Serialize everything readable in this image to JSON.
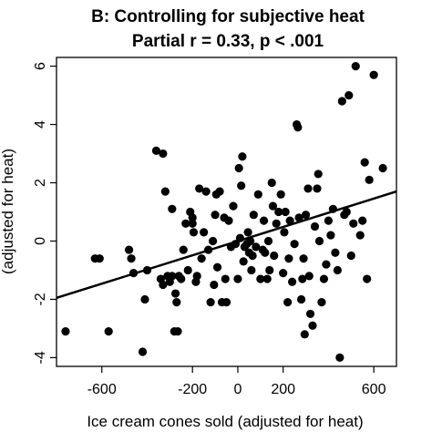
{
  "chart_data": {
    "type": "scatter",
    "title": "B: Controlling for subjective heat",
    "subtitle": "Partial r = 0.33, p < .001",
    "xlabel": "Ice cream cones sold (adjusted for heat)",
    "ylabel": "(adjusted for heat)",
    "xlim": [
      -800,
      700
    ],
    "ylim": [
      -4.3,
      6.3
    ],
    "xticks": [
      -600,
      -200,
      0,
      200,
      600
    ],
    "yticks": [
      -4,
      -2,
      0,
      2,
      4,
      6
    ],
    "grid": false,
    "fit_line": {
      "x": [
        -800,
        700
      ],
      "y": [
        -1.95,
        1.7
      ]
    },
    "colors": {
      "points": "#000000",
      "line": "#000000"
    },
    "points": [
      [
        -760,
        -3.1
      ],
      [
        -610,
        -0.6
      ],
      [
        -570,
        -3.1
      ],
      [
        -480,
        -0.3
      ],
      [
        -470,
        -0.6
      ],
      [
        -460,
        -1.1
      ],
      [
        -420,
        -3.8
      ],
      [
        -410,
        -2.0
      ],
      [
        -400,
        -1.0
      ],
      [
        -360,
        3.1
      ],
      [
        -340,
        -1.3
      ],
      [
        -330,
        -1.5
      ],
      [
        -320,
        1.7
      ],
      [
        -310,
        -1.2
      ],
      [
        -300,
        -1.4
      ],
      [
        -290,
        -1.2
      ],
      [
        -280,
        -3.1
      ],
      [
        -275,
        -1.8
      ],
      [
        -270,
        -2.1
      ],
      [
        -265,
        -3.1
      ],
      [
        -260,
        -1.2
      ],
      [
        -250,
        -1.3
      ],
      [
        -240,
        -0.3
      ],
      [
        -230,
        0.6
      ],
      [
        -220,
        -1.0
      ],
      [
        -210,
        1.0
      ],
      [
        -200,
        0.8
      ],
      [
        -200,
        0.6
      ],
      [
        -195,
        0.3
      ],
      [
        -185,
        -1.4
      ],
      [
        -180,
        -1.2
      ],
      [
        -170,
        1.8
      ],
      [
        -160,
        -0.6
      ],
      [
        -150,
        0.3
      ],
      [
        -140,
        1.7
      ],
      [
        -130,
        -0.3
      ],
      [
        -120,
        -2.1
      ],
      [
        -110,
        0.0
      ],
      [
        -105,
        -1.5
      ],
      [
        -100,
        0.9
      ],
      [
        -95,
        1.6
      ],
      [
        -90,
        -0.9
      ],
      [
        -80,
        1.7
      ],
      [
        -70,
        -2.1
      ],
      [
        -60,
        0.8
      ],
      [
        -55,
        -1.3
      ],
      [
        -50,
        -2.1
      ],
      [
        -40,
        0.7
      ],
      [
        -30,
        -0.2
      ],
      [
        -20,
        1.2
      ],
      [
        -10,
        -0.1
      ],
      [
        0,
        -1.3
      ],
      [
        5,
        2.5
      ],
      [
        10,
        0.1
      ],
      [
        15,
        1.9
      ],
      [
        20,
        2.9
      ],
      [
        25,
        -0.7
      ],
      [
        30,
        -0.2
      ],
      [
        40,
        -0.1
      ],
      [
        45,
        0.3
      ],
      [
        50,
        -0.4
      ],
      [
        55,
        0.0
      ],
      [
        60,
        -1.0
      ],
      [
        65,
        -0.5
      ],
      [
        70,
        0.9
      ],
      [
        80,
        -0.2
      ],
      [
        90,
        1.6
      ],
      [
        100,
        -1.3
      ],
      [
        110,
        -0.3
      ],
      [
        115,
        0.7
      ],
      [
        120,
        -0.4
      ],
      [
        130,
        -1.3
      ],
      [
        135,
        0.0
      ],
      [
        140,
        -1.0
      ],
      [
        150,
        2.0
      ],
      [
        155,
        1.2
      ],
      [
        160,
        -0.5
      ],
      [
        170,
        0.6
      ],
      [
        180,
        1.0
      ],
      [
        190,
        1.6
      ],
      [
        200,
        -1.1
      ],
      [
        205,
        0.3
      ],
      [
        210,
        1.0
      ],
      [
        220,
        -2.1
      ],
      [
        225,
        -0.6
      ],
      [
        230,
        0.7
      ],
      [
        240,
        -1.4
      ],
      [
        250,
        -0.1
      ],
      [
        260,
        4.0
      ],
      [
        265,
        3.9
      ],
      [
        270,
        0.8
      ],
      [
        280,
        -2.0
      ],
      [
        285,
        -1.3
      ],
      [
        290,
        -0.6
      ],
      [
        295,
        -3.2
      ],
      [
        300,
        0.9
      ],
      [
        310,
        1.8
      ],
      [
        315,
        -1.2
      ],
      [
        320,
        -2.5
      ],
      [
        330,
        -2.9
      ],
      [
        340,
        0.5
      ],
      [
        350,
        1.8
      ],
      [
        355,
        2.3
      ],
      [
        360,
        0.0
      ],
      [
        370,
        -2.1
      ],
      [
        380,
        -1.3
      ],
      [
        390,
        -0.8
      ],
      [
        400,
        0.7
      ],
      [
        410,
        0.2
      ],
      [
        420,
        1.1
      ],
      [
        430,
        -0.4
      ],
      [
        440,
        -1.0
      ],
      [
        450,
        -4.0
      ],
      [
        460,
        4.8
      ],
      [
        470,
        0.9
      ],
      [
        480,
        1.0
      ],
      [
        490,
        5.0
      ],
      [
        500,
        -0.5
      ],
      [
        510,
        0.6
      ],
      [
        520,
        6.0
      ],
      [
        540,
        0.2
      ],
      [
        550,
        0.7
      ],
      [
        560,
        2.7
      ],
      [
        570,
        -1.3
      ],
      [
        580,
        2.1
      ],
      [
        600,
        5.7
      ],
      [
        640,
        2.5
      ],
      [
        -630,
        -0.6
      ],
      [
        -330,
        3.0
      ],
      [
        -290,
        1.1
      ]
    ]
  }
}
